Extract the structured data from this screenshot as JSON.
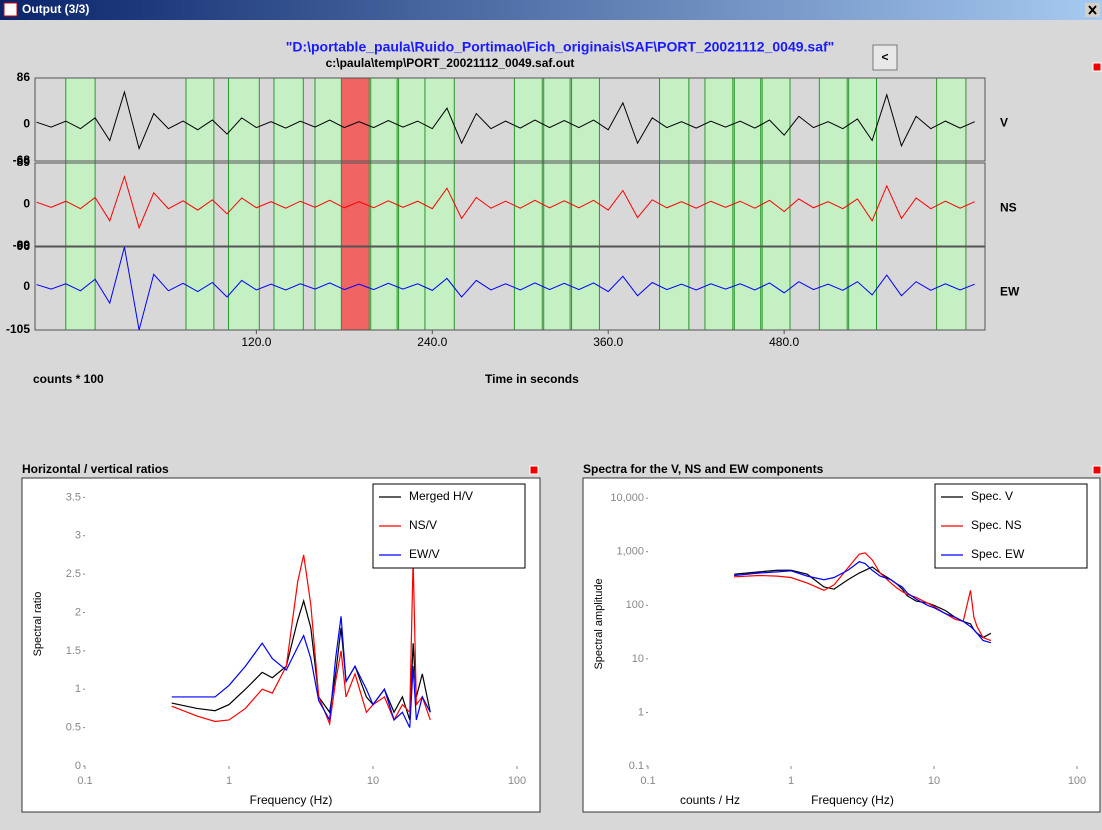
{
  "window_title": "Output (3/3)",
  "header": {
    "path": "\"D:\\portable_paula\\Ruido_Portimao\\Fich_originais\\SAF\\PORT_20021112_0049.saf\"",
    "output_file": "c:\\paula\\temp\\PORT_20021112_0049.saf.out",
    "button": "<"
  },
  "chart_data": [
    {
      "type": "line",
      "xlabel": "Time in seconds",
      "ylabel": "counts * 100",
      "xlim": [
        -31,
        617
      ],
      "xticks": [
        {
          "value": 120,
          "label": "120.0"
        },
        {
          "value": 240,
          "label": "240.0"
        },
        {
          "value": 360,
          "label": "360.0"
        },
        {
          "value": 480,
          "label": "480.0"
        }
      ],
      "windows": [
        {
          "range": [
            -10,
            10
          ],
          "color": "#c4f0c4"
        },
        {
          "range": [
            72,
            91
          ],
          "color": "#c4f0c4"
        },
        {
          "range": [
            101,
            122
          ],
          "color": "#c4f0c4"
        },
        {
          "range": [
            132,
            152
          ],
          "color": "#c4f0c4"
        },
        {
          "range": [
            160,
            178
          ],
          "color": "#c4f0c4"
        },
        {
          "range": [
            178,
            197
          ],
          "color": "#f06464"
        },
        {
          "range": [
            198,
            216
          ],
          "color": "#c4f0c4"
        },
        {
          "range": [
            217,
            235
          ],
          "color": "#c4f0c4"
        },
        {
          "range": [
            235,
            255
          ],
          "color": "#c4f0c4"
        },
        {
          "range": [
            296,
            315
          ],
          "color": "#c4f0c4"
        },
        {
          "range": [
            316,
            334
          ],
          "color": "#c4f0c4"
        },
        {
          "range": [
            335,
            354
          ],
          "color": "#c4f0c4"
        },
        {
          "range": [
            395,
            415
          ],
          "color": "#c4f0c4"
        },
        {
          "range": [
            426,
            445
          ],
          "color": "#c4f0c4"
        },
        {
          "range": [
            446,
            464
          ],
          "color": "#c4f0c4"
        },
        {
          "range": [
            465,
            484
          ],
          "color": "#c4f0c4"
        },
        {
          "range": [
            504,
            523
          ],
          "color": "#c4f0c4"
        },
        {
          "range": [
            524,
            543
          ],
          "color": "#c4f0c4"
        },
        {
          "range": [
            584,
            604
          ],
          "color": "#c4f0c4"
        }
      ],
      "x": [
        -30,
        -20,
        -10,
        0,
        10,
        20,
        30,
        40,
        50,
        60,
        70,
        80,
        90,
        100,
        110,
        120,
        130,
        140,
        150,
        160,
        170,
        180,
        190,
        200,
        210,
        220,
        230,
        240,
        250,
        260,
        270,
        280,
        290,
        300,
        310,
        320,
        330,
        340,
        350,
        360,
        370,
        380,
        390,
        400,
        410,
        420,
        430,
        440,
        450,
        460,
        470,
        480,
        490,
        500,
        510,
        520,
        530,
        540,
        550,
        560,
        570,
        580,
        590,
        600,
        610
      ],
      "panels": [
        {
          "name": "V",
          "color": "#000000",
          "ylim": [
            -68,
            86
          ],
          "yticks": [
            86,
            0,
            -68
          ],
          "values": [
            4,
            -5,
            6,
            -8,
            12,
            -30,
            60,
            -45,
            20,
            -8,
            6,
            -10,
            8,
            -18,
            12,
            -6,
            5,
            -7,
            6,
            -5,
            8,
            -6,
            5,
            -6,
            7,
            -5,
            6,
            -8,
            30,
            -35,
            20,
            -8,
            6,
            -7,
            8,
            -6,
            7,
            -6,
            8,
            -10,
            40,
            -35,
            12,
            -6,
            5,
            -7,
            6,
            -5,
            6,
            -7,
            8,
            -20,
            15,
            -6,
            5,
            -8,
            10,
            -30,
            55,
            -40,
            15,
            -8,
            6,
            -7,
            5
          ]
        },
        {
          "name": "NS",
          "color": "#ff0000",
          "ylim": [
            -89,
            89
          ],
          "yticks": [
            89,
            0,
            -89
          ],
          "values": [
            5,
            -6,
            7,
            -9,
            15,
            -35,
            60,
            -50,
            25,
            -9,
            8,
            -12,
            10,
            -20,
            14,
            -7,
            6,
            -8,
            7,
            -6,
            9,
            -7,
            6,
            -7,
            8,
            -6,
            7,
            -9,
            35,
            -30,
            15,
            -8,
            7,
            -8,
            9,
            -7,
            8,
            -7,
            9,
            -12,
            30,
            -28,
            10,
            -7,
            6,
            -8,
            7,
            -6,
            7,
            -8,
            9,
            -15,
            12,
            -7,
            6,
            -9,
            12,
            -35,
            40,
            -30,
            14,
            -9,
            7,
            -8,
            6
          ]
        },
        {
          "name": "EW",
          "color": "#0000ff",
          "ylim": [
            -105,
            96
          ],
          "yticks": [
            96,
            0,
            -105
          ],
          "values": [
            5,
            -6,
            7,
            -10,
            18,
            -40,
            96,
            -105,
            30,
            -10,
            8,
            -12,
            10,
            -25,
            15,
            -8,
            6,
            -8,
            7,
            -6,
            9,
            -7,
            6,
            -7,
            8,
            -6,
            7,
            -9,
            20,
            -25,
            15,
            -8,
            7,
            -8,
            9,
            -7,
            8,
            -7,
            9,
            -12,
            25,
            -22,
            10,
            -7,
            6,
            -8,
            7,
            -6,
            7,
            -8,
            9,
            -15,
            12,
            -7,
            6,
            -9,
            12,
            -20,
            28,
            -22,
            12,
            -9,
            7,
            -8,
            6
          ]
        }
      ]
    },
    {
      "type": "line",
      "title": "Horizontal / vertical ratios",
      "xlabel": "Frequency (Hz)",
      "ylabel": "Spectral ratio",
      "xscale": "log",
      "xlim": [
        0.1,
        100
      ],
      "xticks": [
        0.1,
        1,
        10,
        100
      ],
      "ylim": [
        0,
        3.7
      ],
      "yticks": [
        0,
        0.5,
        1,
        1.5,
        2,
        2.5,
        3,
        3.5
      ],
      "legend": "upper right",
      "x": [
        0.4,
        0.6,
        0.8,
        1,
        1.3,
        1.7,
        2,
        2.5,
        3,
        3.3,
        3.7,
        4.2,
        5,
        5.5,
        6,
        6.5,
        7.5,
        9,
        10,
        12,
        14,
        16,
        18,
        19,
        20,
        22,
        25
      ],
      "series": [
        {
          "name": "Merged H/V",
          "color": "#000000",
          "values": [
            0.82,
            0.75,
            0.72,
            0.8,
            1.0,
            1.22,
            1.15,
            1.3,
            1.9,
            2.15,
            1.8,
            0.9,
            0.7,
            1.2,
            1.8,
            1.1,
            1.3,
            0.9,
            0.8,
            1.0,
            0.7,
            0.9,
            0.6,
            1.6,
            0.9,
            1.2,
            0.7
          ]
        },
        {
          "name": "NS/V",
          "color": "#ff0000",
          "values": [
            0.78,
            0.65,
            0.58,
            0.6,
            0.75,
            1.0,
            0.95,
            1.3,
            2.4,
            2.75,
            2.1,
            0.9,
            0.55,
            1.1,
            1.5,
            0.9,
            1.2,
            0.7,
            0.8,
            0.9,
            0.6,
            0.8,
            0.7,
            2.7,
            0.8,
            0.9,
            0.6
          ]
        },
        {
          "name": "EW/V",
          "color": "#0000ff",
          "values": [
            0.9,
            0.9,
            0.9,
            1.05,
            1.3,
            1.6,
            1.4,
            1.25,
            1.55,
            1.7,
            1.4,
            0.85,
            0.6,
            1.4,
            1.95,
            1.1,
            1.3,
            1.0,
            0.8,
            1.0,
            0.6,
            0.7,
            0.5,
            1.3,
            0.6,
            0.9,
            0.7
          ]
        }
      ]
    },
    {
      "type": "line",
      "title": "Spectra for the V, NS and EW components",
      "xlabel": "Frequency (Hz)",
      "ylabel": "Spectral amplitude",
      "units_label": "counts / Hz",
      "xscale": "log",
      "yscale": "log",
      "xlim": [
        0.1,
        100
      ],
      "xticks": [
        0.1,
        1,
        10,
        100
      ],
      "ylim": [
        0.1,
        20000
      ],
      "yticks": [
        0.1,
        1,
        10,
        100,
        {
          "value": 1000,
          "label": "1,000"
        },
        {
          "value": 10000,
          "label": "10,000"
        }
      ],
      "legend": "upper right",
      "x": [
        0.4,
        0.6,
        0.8,
        1,
        1.3,
        1.7,
        2,
        2.5,
        3,
        3.3,
        3.7,
        4.2,
        5,
        5.5,
        6,
        6.5,
        7.5,
        9,
        10,
        12,
        14,
        16,
        18,
        19,
        20,
        22,
        25
      ],
      "series": [
        {
          "name": "Spec. V",
          "color": "#000000",
          "values": [
            380,
            420,
            450,
            450,
            380,
            220,
            200,
            300,
            400,
            450,
            520,
            400,
            300,
            250,
            200,
            150,
            120,
            110,
            100,
            80,
            60,
            50,
            45,
            35,
            30,
            25,
            30
          ]
        },
        {
          "name": "Spec. NS",
          "color": "#ff0000",
          "values": [
            340,
            360,
            350,
            330,
            260,
            190,
            240,
            500,
            900,
            950,
            700,
            400,
            260,
            210,
            180,
            160,
            140,
            110,
            95,
            70,
            55,
            50,
            190,
            60,
            40,
            25,
            22
          ]
        },
        {
          "name": "Spec. EW",
          "color": "#0000ff",
          "values": [
            360,
            400,
            420,
            440,
            350,
            300,
            330,
            450,
            650,
            600,
            450,
            350,
            300,
            250,
            220,
            170,
            130,
            100,
            90,
            70,
            60,
            50,
            40,
            35,
            30,
            22,
            20
          ]
        }
      ]
    }
  ]
}
